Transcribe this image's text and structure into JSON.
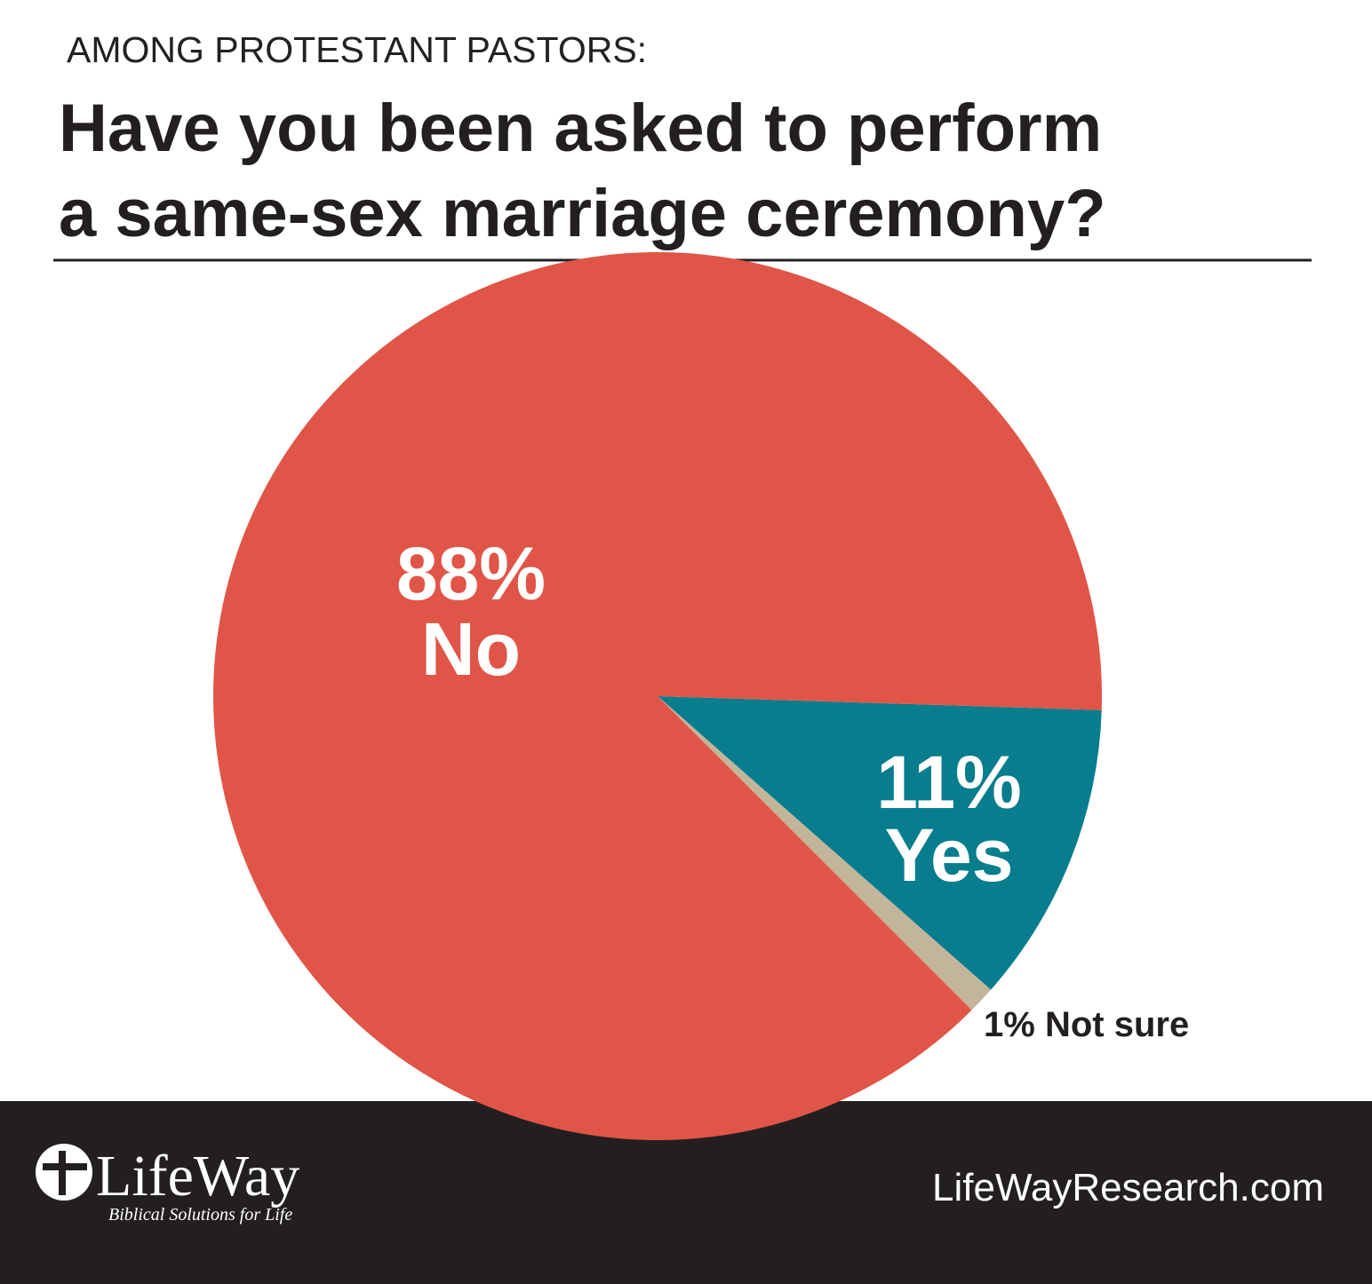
{
  "chart_data": {
    "type": "pie",
    "subtitle": "AMONG PROTESTANT PASTORS:",
    "title": [
      "Have you been asked to perform",
      "a same-sex marriage ceremony?"
    ],
    "categories": [
      "Yes",
      "Not sure",
      "No"
    ],
    "values": [
      11,
      1,
      88
    ],
    "value_labels": [
      "11%",
      "1%",
      "88%"
    ],
    "colors": [
      "#077d8d",
      "#c3b59b",
      "#e05547"
    ]
  },
  "footer": {
    "logo": "LifeWay",
    "tagline": "Biblical Solutions for Life",
    "url": "LifeWayResearch.com"
  }
}
